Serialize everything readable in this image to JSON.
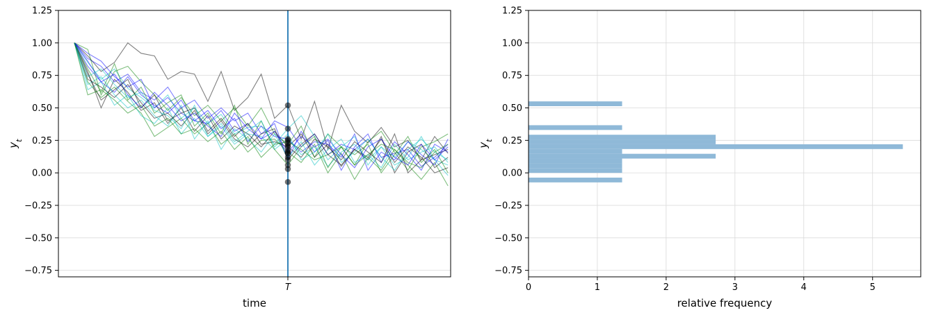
{
  "chart_data": [
    {
      "type": "line",
      "xlabel": "time",
      "ylabel": "y",
      "ylabel_subscript": "t",
      "ylim": [
        -0.8,
        1.25
      ],
      "yticks": [
        -0.75,
        -0.5,
        -0.25,
        0.0,
        0.25,
        0.5,
        0.75,
        1.0,
        1.25
      ],
      "ytick_labels": [
        "−0.75",
        "−0.50",
        "−0.25",
        "0.00",
        "0.25",
        "0.50",
        "0.75",
        "1.00",
        "1.25"
      ],
      "xlim": [
        -1.2,
        28.2
      ],
      "vline": {
        "x": 16,
        "label": "T",
        "color": "#1f77b4"
      },
      "grid": "y",
      "line_colors": [
        "#000000",
        "#0000ff",
        "#00bfbf",
        "#008000"
      ],
      "series": [
        {
          "values": [
            1.0,
            0.9,
            0.78,
            0.85,
            1.0,
            0.92,
            0.9,
            0.72,
            0.78,
            0.76,
            0.55,
            0.78,
            0.48,
            0.58,
            0.76,
            0.42,
            0.52,
            0.26,
            0.55,
            0.18,
            0.52,
            0.32,
            0.23,
            0.35,
            0.2,
            0.25,
            0.1,
            0.28,
            0.15
          ]
        },
        {
          "values": [
            1.0,
            0.82,
            0.7,
            0.62,
            0.74,
            0.6,
            0.52,
            0.46,
            0.56,
            0.4,
            0.38,
            0.48,
            0.32,
            0.38,
            0.26,
            0.4,
            0.35,
            0.2,
            0.3,
            0.14,
            0.22,
            0.18,
            0.26,
            0.12,
            0.15,
            0.18,
            0.05,
            0.12,
            0.22
          ]
        },
        {
          "values": [
            1.0,
            0.85,
            0.72,
            0.8,
            0.65,
            0.58,
            0.5,
            0.6,
            0.42,
            0.5,
            0.38,
            0.45,
            0.3,
            0.35,
            0.36,
            0.22,
            0.34,
            0.44,
            0.28,
            0.1,
            0.2,
            0.28,
            0.06,
            0.2,
            0.12,
            0.24,
            0.18,
            0.1,
            -0.02
          ]
        },
        {
          "values": [
            1.0,
            0.7,
            0.58,
            0.66,
            0.55,
            0.46,
            0.28,
            0.35,
            0.42,
            0.3,
            0.38,
            0.22,
            0.3,
            0.16,
            0.25,
            0.26,
            0.16,
            0.08,
            0.22,
            0.0,
            0.15,
            -0.05,
            0.12,
            0.02,
            0.18,
            0.06,
            -0.05,
            0.08,
            -0.1
          ]
        },
        {
          "values": [
            1.0,
            0.78,
            0.5,
            0.72,
            0.62,
            0.48,
            0.54,
            0.38,
            0.5,
            0.32,
            0.44,
            0.26,
            0.36,
            0.3,
            0.2,
            0.32,
            0.2,
            0.3,
            0.12,
            0.22,
            0.05,
            0.18,
            0.1,
            0.28,
            0.0,
            0.16,
            0.22,
            0.04,
            0.12
          ]
        },
        {
          "values": [
            1.0,
            0.88,
            0.82,
            0.7,
            0.76,
            0.62,
            0.56,
            0.66,
            0.5,
            0.56,
            0.42,
            0.5,
            0.4,
            0.46,
            0.3,
            0.38,
            0.1,
            0.32,
            0.16,
            0.25,
            0.02,
            0.2,
            0.3,
            0.08,
            0.24,
            0.14,
            0.02,
            0.22,
            0.16
          ]
        },
        {
          "values": [
            1.0,
            0.64,
            0.7,
            0.52,
            0.6,
            0.44,
            0.38,
            0.5,
            0.3,
            0.42,
            0.28,
            0.36,
            0.22,
            0.3,
            0.28,
            0.18,
            0.26,
            0.14,
            0.2,
            0.05,
            0.16,
            0.22,
            0.1,
            0.2,
            0.06,
            0.12,
            0.28,
            0.1,
            0.06
          ]
        },
        {
          "values": [
            1.0,
            0.95,
            0.6,
            0.78,
            0.82,
            0.7,
            0.6,
            0.48,
            0.58,
            0.44,
            0.52,
            0.4,
            0.5,
            0.36,
            0.5,
            0.3,
            0.22,
            0.36,
            0.12,
            0.3,
            0.2,
            0.06,
            0.24,
            0.32,
            0.16,
            0.02,
            0.2,
            0.24,
            0.3
          ]
        },
        {
          "values": [
            1.0,
            0.72,
            0.66,
            0.58,
            0.68,
            0.54,
            0.42,
            0.46,
            0.36,
            0.48,
            0.3,
            0.4,
            0.26,
            0.2,
            0.3,
            0.34,
            0.1,
            0.22,
            0.3,
            0.14,
            0.06,
            0.18,
            0.12,
            0.26,
            0.08,
            0.2,
            0.12,
            0.0,
            0.04
          ]
        },
        {
          "values": [
            1.0,
            0.92,
            0.86,
            0.74,
            0.66,
            0.72,
            0.5,
            0.58,
            0.46,
            0.4,
            0.48,
            0.34,
            0.42,
            0.24,
            0.36,
            0.28,
            0.26,
            0.16,
            0.24,
            0.22,
            0.12,
            0.3,
            0.02,
            0.16,
            0.1,
            0.24,
            0.14,
            0.06,
            0.26
          ]
        },
        {
          "values": [
            1.0,
            0.68,
            0.74,
            0.6,
            0.5,
            0.56,
            0.44,
            0.36,
            0.52,
            0.26,
            0.4,
            0.18,
            0.34,
            0.26,
            0.16,
            0.3,
            0.12,
            0.24,
            0.06,
            0.18,
            0.26,
            0.08,
            0.14,
            0.04,
            0.22,
            0.1,
            0.16,
            0.2,
            0.08
          ]
        },
        {
          "values": [
            1.0,
            0.8,
            0.62,
            0.84,
            0.56,
            0.66,
            0.46,
            0.54,
            0.6,
            0.36,
            0.46,
            0.3,
            0.52,
            0.22,
            0.4,
            0.18,
            0.06,
            0.2,
            0.28,
            0.04,
            0.2,
            0.14,
            0.22,
            0.0,
            0.14,
            0.28,
            0.08,
            0.18,
            0.0
          ]
        },
        {
          "values": [
            1.0,
            0.76,
            0.56,
            0.64,
            0.72,
            0.5,
            0.6,
            0.4,
            0.46,
            0.5,
            0.32,
            0.42,
            0.28,
            0.38,
            0.22,
            0.24,
            0.2,
            0.12,
            0.26,
            0.2,
            0.1,
            0.24,
            0.16,
            0.08,
            0.3,
            0.0,
            0.1,
            0.14,
            0.18
          ]
        },
        {
          "values": [
            1.0,
            0.86,
            0.7,
            0.76,
            0.6,
            0.5,
            0.62,
            0.52,
            0.4,
            0.46,
            0.36,
            0.28,
            0.46,
            0.34,
            0.26,
            0.32,
            0.16,
            0.28,
            0.2,
            0.26,
            0.14,
            0.04,
            0.2,
            0.26,
            0.12,
            0.06,
            0.22,
            0.1,
            0.2
          ]
        },
        {
          "values": [
            1.0,
            0.74,
            0.8,
            0.68,
            0.58,
            0.62,
            0.48,
            0.44,
            0.34,
            0.52,
            0.28,
            0.38,
            0.24,
            0.32,
            0.4,
            0.2,
            0.3,
            0.1,
            0.16,
            0.3,
            0.08,
            0.16,
            0.26,
            0.12,
            0.02,
            0.18,
            0.26,
            0.16,
            0.1
          ]
        },
        {
          "values": [
            1.0,
            0.6,
            0.64,
            0.56,
            0.46,
            0.52,
            0.36,
            0.42,
            0.3,
            0.34,
            0.24,
            0.32,
            0.18,
            0.28,
            0.12,
            0.22,
            0.24,
            0.18,
            0.1,
            0.14,
            0.2,
            0.06,
            0.14,
            0.22,
            0.18,
            0.08,
            0.04,
            0.16,
            0.22
          ]
        }
      ],
      "markers_at_T": [
        0.52,
        0.34,
        0.26,
        0.25,
        0.23,
        0.21,
        0.2,
        0.17,
        0.16,
        0.15,
        0.12,
        0.1,
        0.06,
        0.03,
        -0.07
      ]
    },
    {
      "type": "bar",
      "orientation": "horizontal",
      "xlabel": "relative frequency",
      "ylabel": "y",
      "ylabel_subscript": "t",
      "ylim": [
        -0.8,
        1.25
      ],
      "xlim": [
        0,
        5.7
      ],
      "xticks": [
        0,
        1,
        2,
        3,
        4,
        5
      ],
      "yticks": [
        -0.75,
        -0.5,
        -0.25,
        0.0,
        0.25,
        0.5,
        0.75,
        1.0,
        1.25
      ],
      "ytick_labels": [
        "−0.75",
        "−0.50",
        "−0.25",
        "0.00",
        "0.25",
        "0.50",
        "0.75",
        "1.00",
        "1.25"
      ],
      "grid": "both",
      "bar_color": "#8fb9d8",
      "bins": [
        {
          "low": -0.0733,
          "high": -0.0366,
          "value": 1.36
        },
        {
          "low": -0.0366,
          "high": 0.0,
          "value": 0.0
        },
        {
          "low": 0.0,
          "high": 0.0367,
          "value": 1.36
        },
        {
          "low": 0.0367,
          "high": 0.0733,
          "value": 1.36
        },
        {
          "low": 0.0733,
          "high": 0.11,
          "value": 1.36
        },
        {
          "low": 0.11,
          "high": 0.1467,
          "value": 2.72
        },
        {
          "low": 0.1467,
          "high": 0.1833,
          "value": 1.36
        },
        {
          "low": 0.1833,
          "high": 0.22,
          "value": 5.44
        },
        {
          "low": 0.22,
          "high": 0.2567,
          "value": 2.72
        },
        {
          "low": 0.2567,
          "high": 0.2933,
          "value": 2.72
        },
        {
          "low": 0.2933,
          "high": 0.33,
          "value": 0.0
        },
        {
          "low": 0.33,
          "high": 0.3667,
          "value": 1.36
        },
        {
          "low": 0.3667,
          "high": 0.4033,
          "value": 0.0
        },
        {
          "low": 0.4033,
          "high": 0.44,
          "value": 0.0
        },
        {
          "low": 0.44,
          "high": 0.4767,
          "value": 0.0
        },
        {
          "low": 0.4767,
          "high": 0.5133,
          "value": 0.0
        },
        {
          "low": 0.5133,
          "high": 0.55,
          "value": 1.36
        }
      ]
    }
  ]
}
